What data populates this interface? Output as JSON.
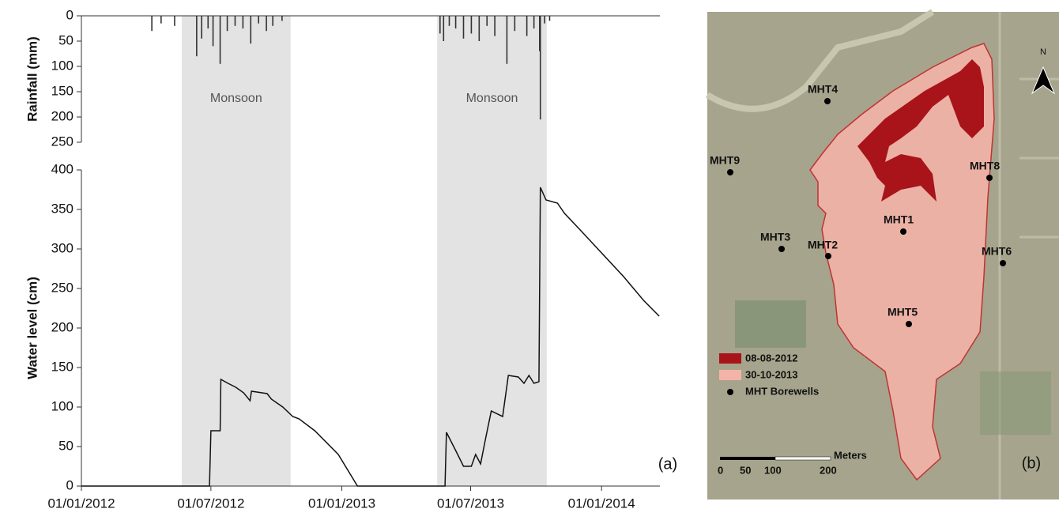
{
  "chart_data": [
    {
      "type": "bar",
      "ylabel": "Rainfall (mm)",
      "color": "#333333",
      "inverted": true,
      "xlim": [
        "2012-01-01",
        "2014-03-24"
      ],
      "ylim": [
        0,
        250
      ],
      "yticks": [
        0,
        50,
        100,
        150,
        200,
        250
      ],
      "x": [
        "2012-04-09",
        "2012-04-22",
        "2012-05-11",
        "2012-06-11",
        "2012-06-18",
        "2012-06-27",
        "2012-07-04",
        "2012-07-14",
        "2012-07-24",
        "2012-08-04",
        "2012-08-15",
        "2012-08-26",
        "2012-09-06",
        "2012-09-17",
        "2012-09-26",
        "2012-10-09",
        "2013-05-19",
        "2013-05-24",
        "2013-06-01",
        "2013-06-10",
        "2013-06-21",
        "2013-07-02",
        "2013-07-13",
        "2013-07-24",
        "2013-08-04",
        "2013-08-21",
        "2013-09-01",
        "2013-09-18",
        "2013-09-28",
        "2013-10-06",
        "2013-10-07",
        "2013-10-13",
        "2013-10-20"
      ],
      "values": [
        30,
        15,
        20,
        80,
        45,
        25,
        60,
        95,
        30,
        20,
        25,
        55,
        15,
        30,
        20,
        10,
        35,
        50,
        20,
        25,
        45,
        35,
        50,
        20,
        40,
        95,
        30,
        40,
        25,
        70,
        205,
        15,
        10
      ]
    },
    {
      "type": "line",
      "ylabel": "Water level (cm)",
      "color": "#111111",
      "panel_label": "(a)",
      "xlim": [
        "2012-01-01",
        "2014-03-24"
      ],
      "xticks": [
        {
          "value": "2012-01-01",
          "label": "01/01/2012"
        },
        {
          "value": "2012-07-01",
          "label": "01/07/2012"
        },
        {
          "value": "2013-01-01",
          "label": "01/01/2013"
        },
        {
          "value": "2013-07-01",
          "label": "01/07/2013"
        },
        {
          "value": "2014-01-01",
          "label": "01/01/2014"
        }
      ],
      "ylim": [
        0,
        400
      ],
      "yticks": [
        0,
        50,
        100,
        150,
        200,
        250,
        300,
        350,
        400
      ],
      "shaded_periods": [
        {
          "start": "2012-05-21",
          "end": "2012-10-21",
          "label": "Monsoon"
        },
        {
          "start": "2013-05-15",
          "end": "2013-10-16",
          "label": "Monsoon"
        }
      ],
      "x": [
        "2012-01-01",
        "2012-06-29",
        "2012-07-01",
        "2012-07-14",
        "2012-07-15",
        "2012-07-25",
        "2012-08-05",
        "2012-08-16",
        "2012-08-25",
        "2012-08-27",
        "2012-09-18",
        "2012-09-24",
        "2012-10-10",
        "2012-10-24",
        "2012-11-02",
        "2012-11-24",
        "2012-12-27",
        "2013-01-23",
        "2013-05-26",
        "2013-05-28",
        "2013-06-10",
        "2013-06-21",
        "2013-07-02",
        "2013-07-08",
        "2013-07-15",
        "2013-07-22",
        "2013-07-30",
        "2013-08-15",
        "2013-08-23",
        "2013-09-06",
        "2013-09-14",
        "2013-09-21",
        "2013-09-28",
        "2013-10-05",
        "2013-10-07",
        "2013-10-15",
        "2013-10-31",
        "2013-11-10",
        "2013-12-01",
        "2014-01-01",
        "2014-02-01",
        "2014-03-01",
        "2014-03-23"
      ],
      "values": [
        0,
        0,
        70,
        70,
        135,
        130,
        125,
        118,
        108,
        120,
        117,
        110,
        100,
        88,
        85,
        70,
        40,
        0,
        0,
        68,
        45,
        25,
        25,
        40,
        28,
        60,
        95,
        88,
        140,
        138,
        130,
        140,
        130,
        132,
        378,
        362,
        358,
        345,
        325,
        295,
        265,
        235,
        215
      ]
    }
  ],
  "map": {
    "legend": [
      "08-08-2012",
      "30-10-2013",
      "MHT Borewells"
    ],
    "borewells": [
      "MHT1",
      "MHT2",
      "MHT3",
      "MHT4",
      "MHT5",
      "MHT6",
      "MHT8",
      "MHT9"
    ],
    "scale_title": "Meters",
    "scale_labels": [
      "0",
      "50",
      "100",
      "200"
    ],
    "north": "N",
    "panel_label": "(b)"
  }
}
